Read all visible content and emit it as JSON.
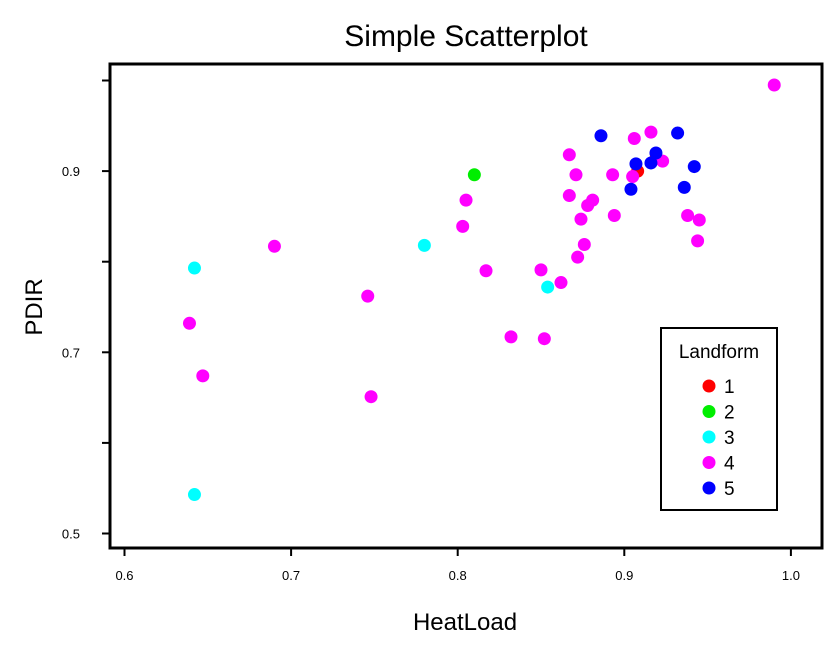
{
  "chart_data": {
    "type": "scatter",
    "title": "Simple Scatterplot",
    "xlabel": "HeatLoad",
    "ylabel": "PDIR",
    "xlim": [
      0.59,
      1.01
    ],
    "ylim": [
      0.49,
      1.0
    ],
    "x_ticks": [
      0.6,
      0.7,
      0.8,
      0.9,
      1.0
    ],
    "x_tick_labels": [
      "0.6",
      "0.7",
      "0.8",
      "0.9",
      "1.0"
    ],
    "y_ticks": [
      0.5,
      0.6,
      0.7,
      0.8,
      0.9,
      1.0
    ],
    "y_tick_labels": [
      "0.5",
      "",
      "0.7",
      "",
      "0.9",
      ""
    ],
    "grid": false,
    "legend": {
      "title": "Landform",
      "placement": "bottom-right inside plot"
    },
    "series": [
      {
        "name": "1",
        "color": "#ff0000",
        "points": [
          [
            0.908,
            0.9
          ],
          [
            0.919,
            0.914
          ]
        ]
      },
      {
        "name": "2",
        "color": "#00ee00",
        "points": [
          [
            0.81,
            0.896
          ]
        ]
      },
      {
        "name": "3",
        "color": "#00ffff",
        "points": [
          [
            0.642,
            0.793
          ],
          [
            0.642,
            0.543
          ],
          [
            0.78,
            0.818
          ],
          [
            0.854,
            0.772
          ]
        ]
      },
      {
        "name": "4",
        "color": "#ff00ff",
        "points": [
          [
            0.639,
            0.732
          ],
          [
            0.647,
            0.674
          ],
          [
            0.69,
            0.817
          ],
          [
            0.746,
            0.762
          ],
          [
            0.748,
            0.651
          ],
          [
            0.803,
            0.839
          ],
          [
            0.805,
            0.868
          ],
          [
            0.817,
            0.79
          ],
          [
            0.832,
            0.717
          ],
          [
            0.85,
            0.791
          ],
          [
            0.852,
            0.715
          ],
          [
            0.862,
            0.777
          ],
          [
            0.867,
            0.873
          ],
          [
            0.867,
            0.918
          ],
          [
            0.871,
            0.896
          ],
          [
            0.872,
            0.805
          ],
          [
            0.874,
            0.847
          ],
          [
            0.876,
            0.819
          ],
          [
            0.878,
            0.862
          ],
          [
            0.881,
            0.868
          ],
          [
            0.893,
            0.896
          ],
          [
            0.894,
            0.851
          ],
          [
            0.905,
            0.894
          ],
          [
            0.906,
            0.936
          ],
          [
            0.916,
            0.943
          ],
          [
            0.923,
            0.911
          ],
          [
            0.938,
            0.851
          ],
          [
            0.944,
            0.823
          ],
          [
            0.945,
            0.846
          ],
          [
            0.99,
            0.995
          ]
        ]
      },
      {
        "name": "5",
        "color": "#0000ff",
        "points": [
          [
            0.886,
            0.939
          ],
          [
            0.904,
            0.88
          ],
          [
            0.907,
            0.908
          ],
          [
            0.916,
            0.909
          ],
          [
            0.919,
            0.92
          ],
          [
            0.932,
            0.942
          ],
          [
            0.936,
            0.882
          ],
          [
            0.942,
            0.905
          ]
        ]
      }
    ]
  }
}
